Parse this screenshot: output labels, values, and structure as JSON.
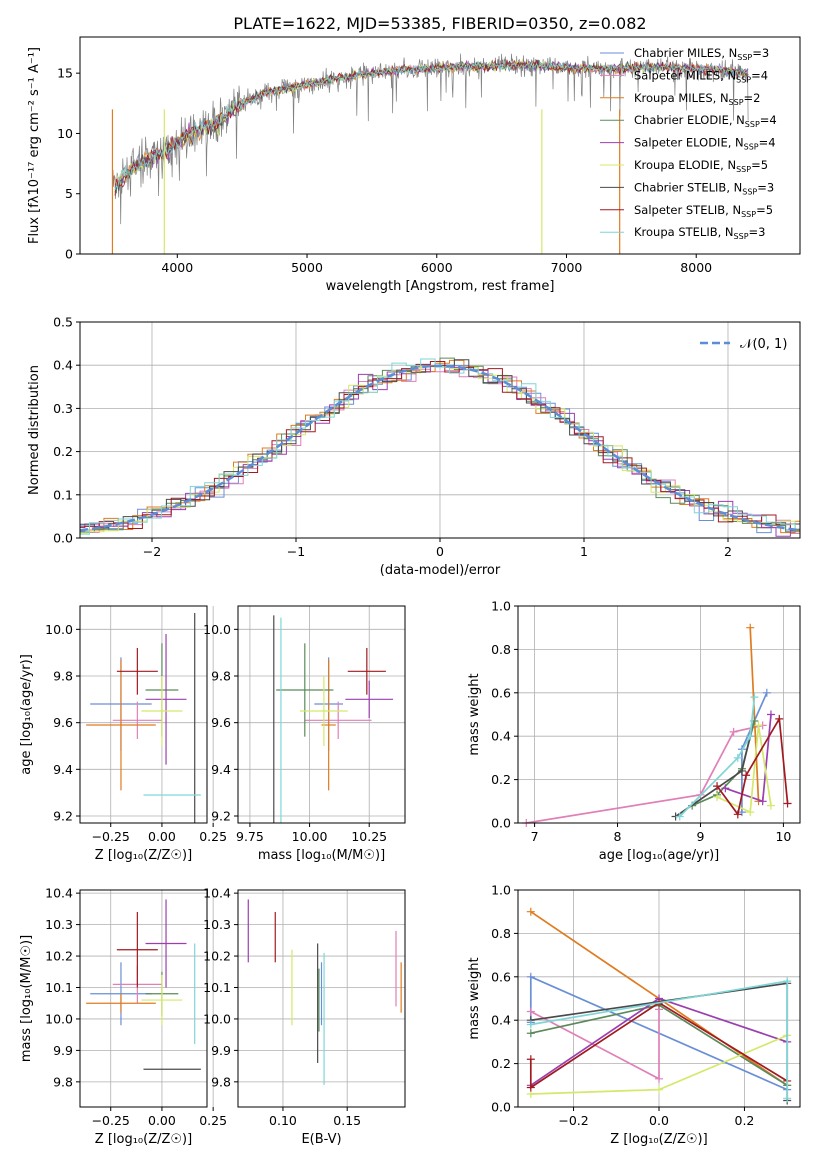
{
  "title": "PLATE=1622, MJD=53385, FIBERID=0350, z=0.082",
  "colors": {
    "Chabrier MILES": "#6a8fd6",
    "Salpeter MILES": "#e07fb8",
    "Kroupa MILES": "#e07b20",
    "Chabrier ELODIE": "#5a8a5a",
    "Salpeter ELODIE": "#9b3fb0",
    "Kroupa ELODIE": "#d4e86b",
    "Chabrier STELIB": "#4a4a4a",
    "Salpeter STELIB": "#a01a20",
    "Kroupa STELIB": "#7fd6d6",
    "normal": "#5b8ed6",
    "data": "#808080"
  },
  "legend": [
    {
      "name": "Chabrier MILES",
      "nssp": 3
    },
    {
      "name": "Salpeter MILES",
      "nssp": 4
    },
    {
      "name": "Kroupa MILES",
      "nssp": 2
    },
    {
      "name": "Chabrier ELODIE",
      "nssp": 4
    },
    {
      "name": "Salpeter ELODIE",
      "nssp": 4
    },
    {
      "name": "Kroupa ELODIE",
      "nssp": 5
    },
    {
      "name": "Chabrier STELIB",
      "nssp": 3
    },
    {
      "name": "Salpeter STELIB",
      "nssp": 5
    },
    {
      "name": "Kroupa STELIB",
      "nssp": 3
    }
  ],
  "chart_data": [
    {
      "type": "line",
      "id": "spectrum",
      "xlabel": "wavelength [Angstrom, rest frame]",
      "ylabel": "Flux [fλ10⁻¹⁷ erg cm⁻² s⁻¹ A⁻¹]",
      "xlim": [
        3250,
        8800
      ],
      "ylim": [
        0,
        18
      ],
      "xticks": [
        4000,
        5000,
        6000,
        7000,
        8000
      ],
      "yticks": [
        0,
        5,
        10,
        15
      ],
      "continuum": [
        [
          3500,
          5.5
        ],
        [
          3700,
          7.5
        ],
        [
          3900,
          8.5
        ],
        [
          4100,
          10
        ],
        [
          4300,
          10.8
        ],
        [
          4500,
          12.5
        ],
        [
          4700,
          13.5
        ],
        [
          4900,
          13.8
        ],
        [
          5100,
          14.3
        ],
        [
          5300,
          14.7
        ],
        [
          5500,
          15
        ],
        [
          5800,
          15.3
        ],
        [
          6100,
          15.5
        ],
        [
          6400,
          15.6
        ],
        [
          6700,
          15.7
        ],
        [
          7000,
          15.5
        ],
        [
          7300,
          15.4
        ],
        [
          7600,
          15.5
        ],
        [
          7900,
          15.4
        ],
        [
          8200,
          15.3
        ],
        [
          8400,
          15
        ]
      ],
      "grid": false,
      "legend": "top-right"
    },
    {
      "type": "bar",
      "id": "residuals",
      "xlabel": "(data-model)/error",
      "ylabel": "Normed distribution",
      "xlim": [
        -2.5,
        2.5
      ],
      "ylim": [
        0,
        0.5
      ],
      "xticks": [
        -2,
        -1,
        0,
        1,
        2
      ],
      "yticks": [
        0.0,
        0.1,
        0.2,
        0.3,
        0.4,
        0.5
      ],
      "legend_label": "𝒩(0, 1)",
      "grid": true
    },
    {
      "type": "scatter",
      "id": "age-vs-Z",
      "xlabel": "Z [log₁₀(Z/Z☉)]",
      "ylabel": "age  [log₁₀(age/yr)]",
      "xlim": [
        -0.4,
        0.22
      ],
      "ylim": [
        9.17,
        10.1
      ],
      "xticks": [
        -0.25,
        0.0,
        0.25
      ],
      "yticks": [
        9.2,
        9.4,
        9.6,
        9.8,
        10.0
      ],
      "points": [
        {
          "m": "Chabrier MILES",
          "x": -0.2,
          "xe": 0.15,
          "y": 9.68,
          "ye": 0.2
        },
        {
          "m": "Salpeter MILES",
          "x": -0.12,
          "xe": 0.12,
          "y": 9.61,
          "ye": 0.08
        },
        {
          "m": "Kroupa MILES",
          "x": -0.2,
          "xe": 0.17,
          "y": 9.59,
          "ye": 0.28
        },
        {
          "m": "Chabrier ELODIE",
          "x": 0.0,
          "xe": 0.08,
          "y": 9.74,
          "ye": 0.2
        },
        {
          "m": "Salpeter ELODIE",
          "x": 0.02,
          "xe": 0.1,
          "y": 9.7,
          "ye": 0.28
        },
        {
          "m": "Kroupa ELODIE",
          "x": 0.0,
          "xe": 0.1,
          "y": 9.65,
          "ye": 0.15
        },
        {
          "m": "Chabrier STELIB",
          "x": 0.16,
          "xe": 0.0,
          "y": 9.6,
          "ye": 0.47
        },
        {
          "m": "Salpeter STELIB",
          "x": -0.12,
          "xe": 0.1,
          "y": 9.82,
          "ye": 0.1
        },
        {
          "m": "Kroupa STELIB",
          "x": 0.05,
          "xe": 0.14,
          "y": 9.29,
          "ye": 0.0
        }
      ]
    },
    {
      "type": "scatter",
      "id": "age-vs-mass",
      "xlabel": "mass [log₁₀(M/M☉)]",
      "ylabel": "",
      "xlim": [
        9.7,
        10.4
      ],
      "ylim": [
        9.17,
        10.1
      ],
      "xticks": [
        9.75,
        10.0,
        10.25
      ],
      "yticks": [
        9.2,
        9.4,
        9.6,
        9.8,
        10.0
      ],
      "points": [
        {
          "m": "Chabrier MILES",
          "x": 10.08,
          "xe": 0.06,
          "y": 9.68,
          "ye": 0.2
        },
        {
          "m": "Salpeter MILES",
          "x": 10.12,
          "xe": 0.14,
          "y": 9.61,
          "ye": 0.08
        },
        {
          "m": "Kroupa MILES",
          "x": 10.08,
          "xe": 0.03,
          "y": 9.59,
          "ye": 0.28
        },
        {
          "m": "Chabrier ELODIE",
          "x": 9.98,
          "xe": 0.12,
          "y": 9.74,
          "ye": 0.2
        },
        {
          "m": "Salpeter ELODIE",
          "x": 10.25,
          "xe": 0.1,
          "y": 9.7,
          "ye": 0.08
        },
        {
          "m": "Kroupa ELODIE",
          "x": 10.06,
          "xe": 0.1,
          "y": 9.65,
          "ye": 0.15
        },
        {
          "m": "Chabrier STELIB",
          "x": 9.85,
          "xe": 0.0,
          "y": 9.29,
          "ye": 0.77
        },
        {
          "m": "Salpeter STELIB",
          "x": 10.24,
          "xe": 0.08,
          "y": 9.82,
          "ye": 0.1
        },
        {
          "m": "Kroupa STELIB",
          "x": 9.88,
          "xe": 0.0,
          "y": 9.6,
          "ye": 0.45
        }
      ]
    },
    {
      "type": "line",
      "id": "mass-weight-vs-age",
      "xlabel": "age  [log₁₀(age/yr)]",
      "ylabel": "mass weight",
      "xlim": [
        6.8,
        10.2
      ],
      "ylim": [
        0.0,
        1.0
      ],
      "xticks": [
        7,
        8,
        9,
        10
      ],
      "yticks": [
        0.0,
        0.2,
        0.4,
        0.6,
        0.8,
        1.0
      ],
      "series": [
        {
          "m": "Chabrier MILES",
          "x": [
            9.5,
            9.5,
            9.8
          ],
          "y": [
            0.05,
            0.34,
            0.6
          ]
        },
        {
          "m": "Salpeter MILES",
          "x": [
            6.9,
            9.0,
            9.4,
            9.75
          ],
          "y": [
            0.0,
            0.13,
            0.42,
            0.45
          ]
        },
        {
          "m": "Kroupa MILES",
          "x": [
            9.7,
            9.6
          ],
          "y": [
            0.1,
            0.9
          ]
        },
        {
          "m": "Chabrier ELODIE",
          "x": [
            8.9,
            9.2,
            9.5,
            9.65
          ],
          "y": [
            0.08,
            0.13,
            0.25,
            0.47
          ]
        },
        {
          "m": "Salpeter ELODIE",
          "x": [
            9.3,
            9.75,
            9.85
          ],
          "y": [
            0.16,
            0.1,
            0.5
          ]
        },
        {
          "m": "Kroupa ELODIE",
          "x": [
            9.2,
            9.6,
            9.7,
            9.85
          ],
          "y": [
            0.12,
            0.05,
            0.45,
            0.08
          ]
        },
        {
          "m": "Chabrier STELIB",
          "x": [
            8.7,
            9.5,
            9.6
          ],
          "y": [
            0.03,
            0.24,
            0.4
          ]
        },
        {
          "m": "Salpeter STELIB",
          "x": [
            9.2,
            9.45,
            9.55,
            9.95,
            10.05
          ],
          "y": [
            0.17,
            0.04,
            0.22,
            0.48,
            0.09
          ]
        },
        {
          "m": "Kroupa STELIB",
          "x": [
            8.75,
            9.45,
            9.6,
            9.65
          ],
          "y": [
            0.03,
            0.3,
            0.4,
            0.58
          ]
        }
      ]
    },
    {
      "type": "scatter",
      "id": "mass-vs-Z",
      "xlabel": "Z [log₁₀(Z/Z☉)]",
      "ylabel": "mass [log₁₀(M/M☉)]",
      "xlim": [
        -0.4,
        0.22
      ],
      "ylim": [
        9.72,
        10.41
      ],
      "xticks": [
        -0.25,
        0.0,
        0.25
      ],
      "yticks": [
        9.8,
        9.9,
        10.0,
        10.1,
        10.2,
        10.3,
        10.4
      ],
      "points": [
        {
          "m": "Chabrier MILES",
          "x": -0.2,
          "xe": 0.15,
          "y": 10.08,
          "ye": 0.1
        },
        {
          "m": "Salpeter MILES",
          "x": -0.12,
          "xe": 0.12,
          "y": 10.11,
          "ye": 0.06
        },
        {
          "m": "Kroupa MILES",
          "x": -0.2,
          "xe": 0.17,
          "y": 10.05,
          "ye": 0.03
        },
        {
          "m": "Chabrier ELODIE",
          "x": 0.0,
          "xe": 0.08,
          "y": 10.08,
          "ye": 0.07
        },
        {
          "m": "Salpeter ELODIE",
          "x": 0.02,
          "xe": 0.1,
          "y": 10.24,
          "ye": 0.14
        },
        {
          "m": "Kroupa ELODIE",
          "x": 0.0,
          "xe": 0.1,
          "y": 10.06,
          "ye": 0.08
        },
        {
          "m": "Chabrier STELIB",
          "x": 0.05,
          "xe": 0.14,
          "y": 9.84,
          "ye": 0.0
        },
        {
          "m": "Salpeter STELIB",
          "x": -0.12,
          "xe": 0.1,
          "y": 10.22,
          "ye": 0.12
        },
        {
          "m": "Kroupa STELIB",
          "x": 0.16,
          "xe": 0.0,
          "y": 10.08,
          "ye": 0.16
        }
      ]
    },
    {
      "type": "scatter",
      "id": "mass-vs-EBV",
      "xlabel": "E(B-V)",
      "ylabel": "",
      "xlim": [
        0.065,
        0.195
      ],
      "ylim": [
        9.72,
        10.41
      ],
      "xticks": [
        0.1,
        0.15
      ],
      "yticks": [
        9.8,
        9.9,
        10.0,
        10.1,
        10.2,
        10.3,
        10.4
      ],
      "points": [
        {
          "m": "Chabrier MILES",
          "x": 0.13,
          "y": 10.08,
          "ye": 0.1
        },
        {
          "m": "Salpeter MILES",
          "x": 0.188,
          "y": 10.16,
          "ye": 0.12
        },
        {
          "m": "Kroupa MILES",
          "x": 0.192,
          "y": 10.1,
          "ye": 0.08
        },
        {
          "m": "Chabrier ELODIE",
          "x": 0.128,
          "y": 10.06,
          "ye": 0.1
        },
        {
          "m": "Salpeter ELODIE",
          "x": 0.073,
          "y": 10.28,
          "ye": 0.1
        },
        {
          "m": "Kroupa ELODIE",
          "x": 0.107,
          "y": 10.1,
          "ye": 0.12
        },
        {
          "m": "Chabrier STELIB",
          "x": 0.127,
          "y": 10.05,
          "ye": 0.19
        },
        {
          "m": "Salpeter STELIB",
          "x": 0.094,
          "y": 10.26,
          "ye": 0.08
        },
        {
          "m": "Kroupa STELIB",
          "x": 0.132,
          "y": 10.0,
          "ye": 0.21
        }
      ]
    },
    {
      "type": "line",
      "id": "mass-weight-vs-Z",
      "xlabel": "Z [log₁₀(Z/Z☉)]",
      "ylabel": "mass weight",
      "xlim": [
        -0.33,
        0.33
      ],
      "ylim": [
        0.0,
        1.0
      ],
      "xticks": [
        -0.2,
        0.0,
        0.2
      ],
      "yticks": [
        0.0,
        0.2,
        0.4,
        0.6,
        0.8,
        1.0
      ],
      "series": [
        {
          "m": "Chabrier MILES",
          "x": [
            -0.3,
            -0.3,
            0.3
          ],
          "y": [
            0.39,
            0.6,
            0.08
          ]
        },
        {
          "m": "Salpeter MILES",
          "x": [
            -0.3,
            0.0,
            0.0
          ],
          "y": [
            0.44,
            0.13,
            0.45
          ]
        },
        {
          "m": "Kroupa MILES",
          "x": [
            -0.3,
            0.3
          ],
          "y": [
            0.9,
            0.1
          ]
        },
        {
          "m": "Chabrier ELODIE",
          "x": [
            -0.3,
            0.0,
            0.3
          ],
          "y": [
            0.34,
            0.47,
            0.1
          ]
        },
        {
          "m": "Salpeter ELODIE",
          "x": [
            -0.3,
            0.0,
            0.3
          ],
          "y": [
            0.1,
            0.5,
            0.3
          ]
        },
        {
          "m": "Kroupa ELODIE",
          "x": [
            -0.3,
            0.0,
            0.3
          ],
          "y": [
            0.06,
            0.08,
            0.33
          ]
        },
        {
          "m": "Chabrier STELIB",
          "x": [
            -0.3,
            0.3,
            0.3
          ],
          "y": [
            0.4,
            0.57,
            0.03
          ]
        },
        {
          "m": "Salpeter STELIB",
          "x": [
            -0.3,
            -0.3,
            0.0,
            0.3
          ],
          "y": [
            0.22,
            0.09,
            0.48,
            0.12
          ]
        },
        {
          "m": "Kroupa STELIB",
          "x": [
            -0.3,
            0.3,
            0.3
          ],
          "y": [
            0.38,
            0.58,
            0.04
          ]
        }
      ]
    }
  ]
}
